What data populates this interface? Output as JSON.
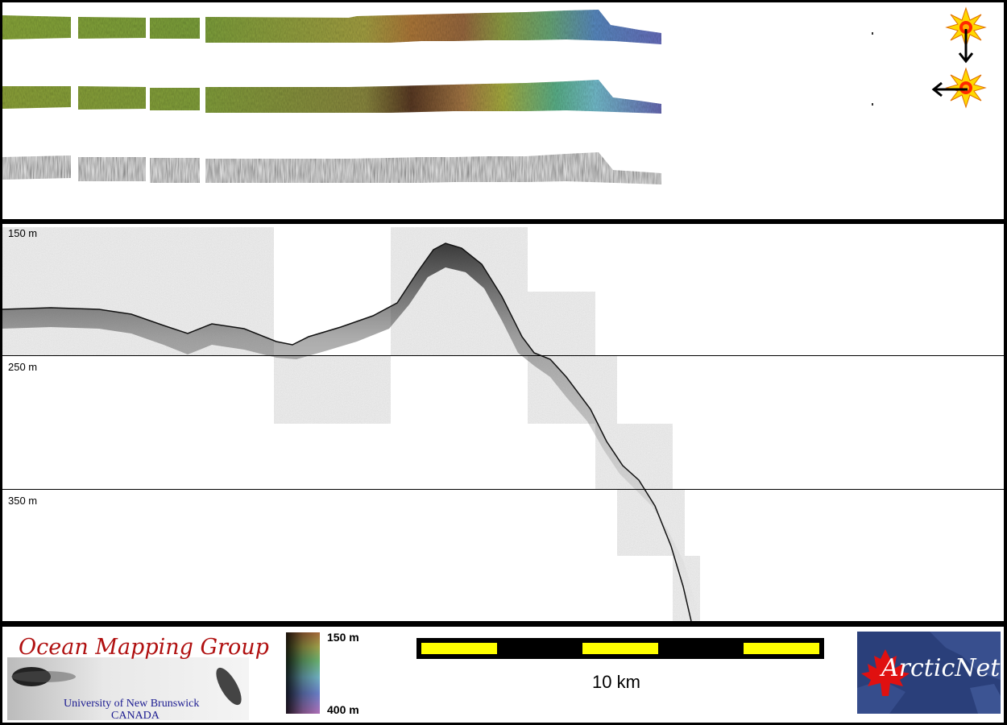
{
  "depth_axis": {
    "labels": [
      "150 m",
      "250 m",
      "350 m"
    ],
    "values_m": [
      150,
      250,
      350
    ]
  },
  "colorbar": {
    "top_label": "150 m",
    "bottom_label": "400 m",
    "min_depth_m": 150,
    "max_depth_m": 400
  },
  "scale_bar": {
    "label": "10 km",
    "length_km": 10,
    "segment_colors": [
      "#ffff00",
      "#000000",
      "#ffff00",
      "#000000",
      "#ffff00"
    ]
  },
  "logo_left": {
    "title": "Ocean Mapping Group",
    "subtitle_line1": "University of New Brunswick",
    "subtitle_line2": "CANADA"
  },
  "logo_right": {
    "text": "ArcticNet"
  },
  "sun_icons": [
    "sun-arrow-down-icon",
    "sun-arrow-left-icon"
  ],
  "colors": {
    "background": "#000000",
    "panel": "#ffffff",
    "scale_yellow": "#ffff00",
    "omg_red": "#b01010",
    "unb_blue": "#1a1a90",
    "arcticnet_bg": "#2a3f7a"
  }
}
